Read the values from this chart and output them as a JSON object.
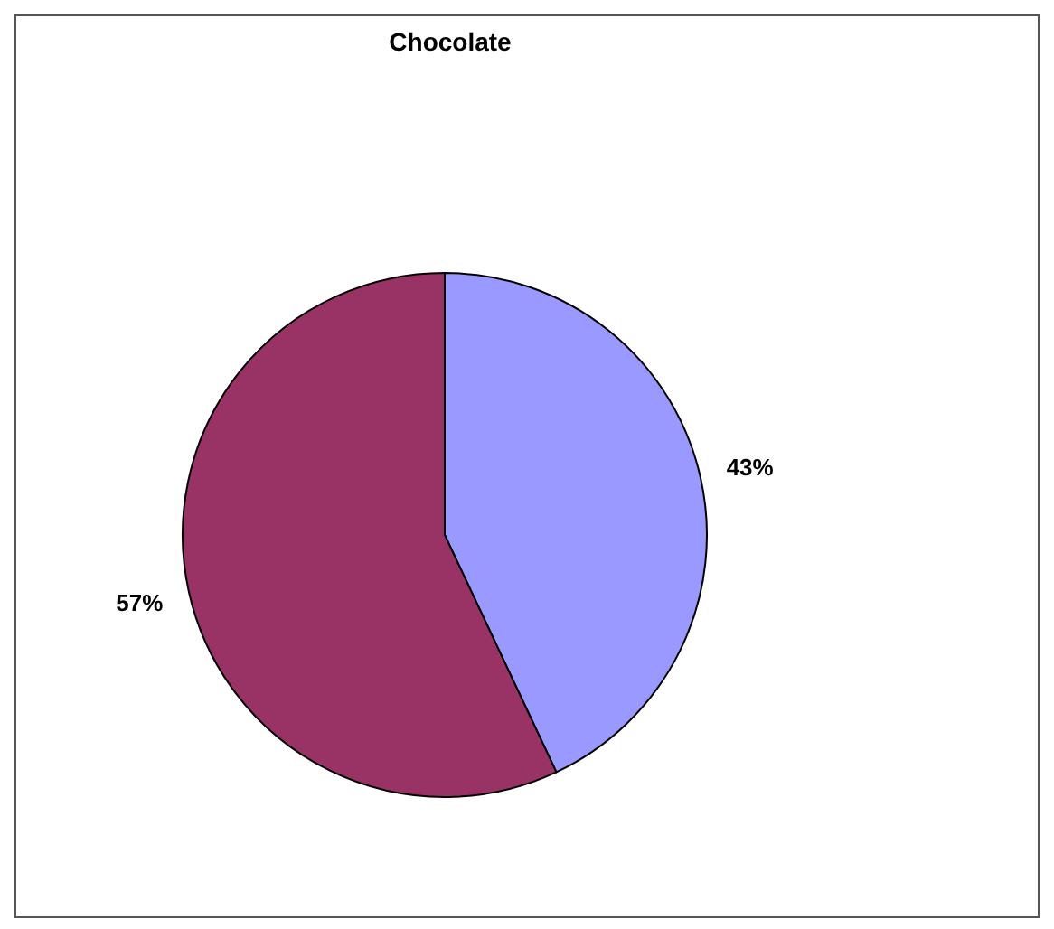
{
  "chart_data": {
    "type": "pie",
    "title": "Chocolate",
    "categories": [
      null,
      null
    ],
    "values": [
      43,
      57
    ],
    "colors": [
      "#9999ff",
      "#993366"
    ],
    "value_labels": [
      "43%",
      "57%"
    ],
    "legend": false
  }
}
